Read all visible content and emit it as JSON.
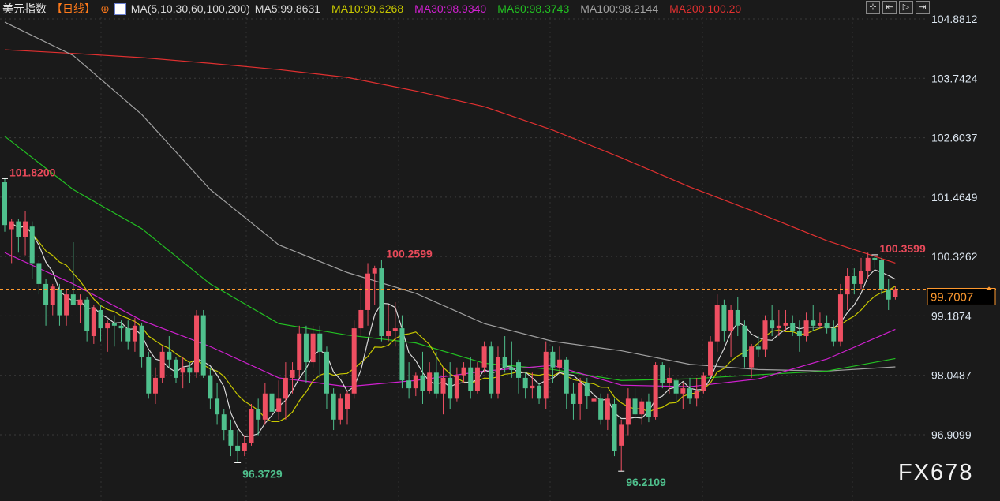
{
  "header": {
    "title": "美元指数",
    "period": "【日线】",
    "period_icon": "circle-plus-icon",
    "ma_label": "MA(5,10,30,60,100,200)",
    "ma_values": [
      {
        "text": "MA5:99.8631",
        "color": "#d8d8d8"
      },
      {
        "text": "MA10:99.6268",
        "color": "#c8c800"
      },
      {
        "text": "MA30:98.9340",
        "color": "#d020d0"
      },
      {
        "text": "MA60:98.3743",
        "color": "#22c022"
      },
      {
        "text": "MA100:98.2144",
        "color": "#a0a0a0"
      },
      {
        "text": "MA200:100.20",
        "color": "#e03030"
      }
    ]
  },
  "toolbar": {
    "icons": [
      "crosshair-icon",
      "zoom-range-icon",
      "play-icon",
      "move-right-icon"
    ],
    "glyphs": [
      "⊹",
      "⇤",
      "▷",
      "⇥"
    ]
  },
  "watermark": "FX678",
  "colors": {
    "up": "#ef4f62",
    "down": "#4fc08d",
    "background": "#1a1a1a",
    "last_price": "#ff9a30"
  },
  "chart_data": {
    "type": "candlestick",
    "title": "",
    "y_ticks": [
      "104.8812",
      "103.7424",
      "102.6037",
      "101.4649",
      "100.3262",
      "99.1874",
      "98.0487",
      "96.9099"
    ],
    "ylim": [
      96.0,
      104.95
    ],
    "grid": true,
    "last_price": "99.7007",
    "annotations": [
      {
        "bar": 0,
        "value": 101.82,
        "text": "101.8200",
        "kind": "high"
      },
      {
        "bar": 55,
        "value": 100.2599,
        "text": "100.2599",
        "kind": "high"
      },
      {
        "bar": 127,
        "value": 100.3599,
        "text": "100.3599",
        "kind": "high"
      },
      {
        "bar": 34,
        "value": 96.3729,
        "text": "96.3729",
        "kind": "low"
      },
      {
        "bar": 90,
        "value": 96.2109,
        "text": "96.2109",
        "kind": "low"
      }
    ],
    "ohlc": [
      [
        101.75,
        101.82,
        100.8,
        100.93
      ],
      [
        100.85,
        101.05,
        100.2,
        101.0
      ],
      [
        101.0,
        101.05,
        100.4,
        100.7
      ],
      [
        100.7,
        101.2,
        100.35,
        101.0
      ],
      [
        100.9,
        101.0,
        99.9,
        100.2
      ],
      [
        100.2,
        100.25,
        99.6,
        99.8
      ],
      [
        99.8,
        99.9,
        99.0,
        99.4
      ],
      [
        99.4,
        99.8,
        99.2,
        99.75
      ],
      [
        99.7,
        99.8,
        99.0,
        99.2
      ],
      [
        99.2,
        99.7,
        99.0,
        99.6
      ],
      [
        99.6,
        100.6,
        99.4,
        99.4
      ],
      [
        99.4,
        99.6,
        99.05,
        99.5
      ],
      [
        99.5,
        99.55,
        98.7,
        98.9
      ],
      [
        98.8,
        99.4,
        98.65,
        99.35
      ],
      [
        99.3,
        99.4,
        98.7,
        98.95
      ],
      [
        98.95,
        99.1,
        98.5,
        99.05
      ],
      [
        99.05,
        99.2,
        98.6,
        99.0
      ],
      [
        99.0,
        99.1,
        98.7,
        98.95
      ],
      [
        98.95,
        99.1,
        98.55,
        98.7
      ],
      [
        98.7,
        99.15,
        98.5,
        99.0
      ],
      [
        99.0,
        99.05,
        98.2,
        98.4
      ],
      [
        98.4,
        98.5,
        97.6,
        97.7
      ],
      [
        97.7,
        98.2,
        97.5,
        98.0
      ],
      [
        98.0,
        98.6,
        97.9,
        98.5
      ],
      [
        98.5,
        98.8,
        98.2,
        98.35
      ],
      [
        98.35,
        98.4,
        97.9,
        98.0
      ],
      [
        98.1,
        98.4,
        97.8,
        98.2
      ],
      [
        98.2,
        98.3,
        97.9,
        98.1
      ],
      [
        98.1,
        99.3,
        98.0,
        99.2
      ],
      [
        99.2,
        99.3,
        98.0,
        98.05
      ],
      [
        98.05,
        98.2,
        97.4,
        97.6
      ],
      [
        97.6,
        97.9,
        97.1,
        97.3
      ],
      [
        97.3,
        97.4,
        96.8,
        97.0
      ],
      [
        97.0,
        97.2,
        96.5,
        96.7
      ],
      [
        96.7,
        97.0,
        96.37,
        96.6
      ],
      [
        96.6,
        96.9,
        96.5,
        96.75
      ],
      [
        96.75,
        97.5,
        96.7,
        97.4
      ],
      [
        97.4,
        97.6,
        96.9,
        97.2
      ],
      [
        97.2,
        97.9,
        97.1,
        97.7
      ],
      [
        97.7,
        97.8,
        97.2,
        97.35
      ],
      [
        97.35,
        97.95,
        97.2,
        97.6
      ],
      [
        97.6,
        98.3,
        97.2,
        98.0
      ],
      [
        98.0,
        98.3,
        97.7,
        98.15
      ],
      [
        98.15,
        99.0,
        98.0,
        98.85
      ],
      [
        98.85,
        99.0,
        97.9,
        98.3
      ],
      [
        98.3,
        99.0,
        98.2,
        98.85
      ],
      [
        98.85,
        99.0,
        98.0,
        98.5
      ],
      [
        98.5,
        98.6,
        97.4,
        97.7
      ],
      [
        97.7,
        97.8,
        97.0,
        97.2
      ],
      [
        97.2,
        97.7,
        97.1,
        97.6
      ],
      [
        97.4,
        97.75,
        97.1,
        97.7
      ],
      [
        97.7,
        99.1,
        97.6,
        98.95
      ],
      [
        98.95,
        99.8,
        98.8,
        99.3
      ],
      [
        99.3,
        100.2,
        99.0,
        100.0
      ],
      [
        100.0,
        100.15,
        99.4,
        100.1
      ],
      [
        100.1,
        100.26,
        98.7,
        98.8
      ],
      [
        98.8,
        99.4,
        98.7,
        98.9
      ],
      [
        98.9,
        99.45,
        98.6,
        98.95
      ],
      [
        98.95,
        99.2,
        97.8,
        97.95
      ],
      [
        97.95,
        98.3,
        97.6,
        97.8
      ],
      [
        97.8,
        98.1,
        97.65,
        98.05
      ],
      [
        98.05,
        98.5,
        97.5,
        97.75
      ],
      [
        97.75,
        98.3,
        97.7,
        98.1
      ],
      [
        98.1,
        98.5,
        97.6,
        97.7
      ],
      [
        97.7,
        98.2,
        97.3,
        98.0
      ],
      [
        98.0,
        98.3,
        97.4,
        97.6
      ],
      [
        97.6,
        98.2,
        97.55,
        98.05
      ],
      [
        98.05,
        98.3,
        97.9,
        98.2
      ],
      [
        98.2,
        98.4,
        97.6,
        97.75
      ],
      [
        97.75,
        98.3,
        97.7,
        98.2
      ],
      [
        98.2,
        98.7,
        98.1,
        98.6
      ],
      [
        98.6,
        98.7,
        97.6,
        97.7
      ],
      [
        97.7,
        98.6,
        97.6,
        98.4
      ],
      [
        98.4,
        98.8,
        98.1,
        98.2
      ],
      [
        98.2,
        98.7,
        98.0,
        98.15
      ],
      [
        98.3,
        98.35,
        97.7,
        98.0
      ],
      [
        98.0,
        98.1,
        97.6,
        97.8
      ],
      [
        97.8,
        98.1,
        97.6,
        97.85
      ],
      [
        97.85,
        97.9,
        97.5,
        97.6
      ],
      [
        97.6,
        98.7,
        97.4,
        98.5
      ],
      [
        98.5,
        98.6,
        97.9,
        98.2
      ],
      [
        98.2,
        98.6,
        98.1,
        98.35
      ],
      [
        98.35,
        98.4,
        97.4,
        97.7
      ],
      [
        97.7,
        97.9,
        97.2,
        97.5
      ],
      [
        97.5,
        98.0,
        97.2,
        97.9
      ],
      [
        97.9,
        98.0,
        97.4,
        97.65
      ],
      [
        97.55,
        97.8,
        97.3,
        97.6
      ],
      [
        97.6,
        97.7,
        97.1,
        97.2
      ],
      [
        97.2,
        97.7,
        97.0,
        97.6
      ],
      [
        97.5,
        97.6,
        96.5,
        96.6
      ],
      [
        96.7,
        97.2,
        96.21,
        97.1
      ],
      [
        97.1,
        97.8,
        96.9,
        97.6
      ],
      [
        97.6,
        97.8,
        97.2,
        97.3
      ],
      [
        97.3,
        97.6,
        97.1,
        97.55
      ],
      [
        97.55,
        97.7,
        97.15,
        97.25
      ],
      [
        97.25,
        98.3,
        97.2,
        98.25
      ],
      [
        98.25,
        98.3,
        97.8,
        97.9
      ],
      [
        97.9,
        98.2,
        97.7,
        98.0
      ],
      [
        97.95,
        98.0,
        97.5,
        97.7
      ],
      [
        97.7,
        97.9,
        97.4,
        97.8
      ],
      [
        97.8,
        98.0,
        97.5,
        97.6
      ],
      [
        97.6,
        98.0,
        97.45,
        97.75
      ],
      [
        97.75,
        98.1,
        97.7,
        98.05
      ],
      [
        98.05,
        98.8,
        98.0,
        98.7
      ],
      [
        98.7,
        99.6,
        98.5,
        99.4
      ],
      [
        99.4,
        99.5,
        98.7,
        98.9
      ],
      [
        98.9,
        99.4,
        98.4,
        99.3
      ],
      [
        99.3,
        99.55,
        98.8,
        99.0
      ],
      [
        99.0,
        99.1,
        98.2,
        98.4
      ],
      [
        98.2,
        98.65,
        98.0,
        98.6
      ],
      [
        98.6,
        98.8,
        98.4,
        98.55
      ],
      [
        98.55,
        99.2,
        98.4,
        99.1
      ],
      [
        99.1,
        99.4,
        98.8,
        98.95
      ],
      [
        98.95,
        99.3,
        98.8,
        99.0
      ],
      [
        99.0,
        99.3,
        98.9,
        99.05
      ],
      [
        99.05,
        99.2,
        98.8,
        98.9
      ],
      [
        98.9,
        99.1,
        98.5,
        98.8
      ],
      [
        98.8,
        99.25,
        98.7,
        99.1
      ],
      [
        99.1,
        99.4,
        98.9,
        99.0
      ],
      [
        99.0,
        99.25,
        98.95,
        99.05
      ],
      [
        99.05,
        99.2,
        98.85,
        98.95
      ],
      [
        98.95,
        99.1,
        98.6,
        98.7
      ],
      [
        98.7,
        99.8,
        98.6,
        99.6
      ],
      [
        99.6,
        100.1,
        99.3,
        99.95
      ],
      [
        99.95,
        100.1,
        99.6,
        99.8
      ],
      [
        99.8,
        100.3,
        99.7,
        100.05
      ],
      [
        100.05,
        100.4,
        99.9,
        100.3
      ],
      [
        100.3,
        100.36,
        100.1,
        100.26
      ],
      [
        100.26,
        100.3,
        99.6,
        99.7
      ],
      [
        99.7,
        99.9,
        99.3,
        99.5
      ],
      [
        99.55,
        99.75,
        99.5,
        99.7
      ]
    ],
    "moving_averages": [
      {
        "name": "MA5",
        "period": 5,
        "color": "#d8d8d8",
        "computed": true
      },
      {
        "name": "MA10",
        "period": 10,
        "color": "#c8c800",
        "computed": true
      },
      {
        "name": "MA30",
        "color": "#d020d0",
        "bars": [
          0,
          10,
          20,
          30,
          40,
          50,
          60,
          70,
          80,
          90,
          100,
          110,
          120,
          130
        ],
        "values": [
          100.4,
          99.8,
          99.1,
          98.6,
          98.0,
          97.83,
          97.95,
          98.13,
          98.24,
          97.86,
          97.83,
          97.98,
          98.36,
          98.93
        ]
      },
      {
        "name": "MA60",
        "color": "#22c022",
        "bars": [
          0,
          10,
          20,
          30,
          40,
          50,
          60,
          70,
          80,
          90,
          100,
          110,
          120,
          130
        ],
        "values": [
          102.63,
          101.61,
          100.86,
          99.8,
          99.04,
          98.82,
          98.67,
          98.28,
          98.16,
          97.95,
          97.98,
          98.06,
          98.13,
          98.37
        ]
      },
      {
        "name": "MA100",
        "color": "#a0a0a0",
        "bars": [
          0,
          10,
          20,
          30,
          40,
          50,
          60,
          70,
          80,
          90,
          100,
          110,
          120,
          130
        ],
        "values": [
          104.82,
          104.18,
          103.05,
          101.61,
          100.55,
          100.02,
          99.62,
          99.04,
          98.7,
          98.52,
          98.26,
          98.16,
          98.13,
          98.21
        ]
      },
      {
        "name": "MA200",
        "color": "#e03030",
        "bars": [
          0,
          10,
          20,
          30,
          40,
          50,
          60,
          70,
          80,
          90,
          100,
          110,
          120,
          130
        ],
        "values": [
          104.29,
          104.22,
          104.14,
          104.03,
          103.91,
          103.76,
          103.5,
          103.2,
          102.75,
          102.22,
          101.66,
          101.16,
          100.63,
          100.2
        ]
      }
    ]
  }
}
